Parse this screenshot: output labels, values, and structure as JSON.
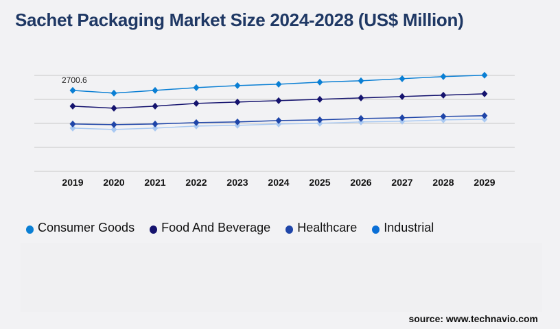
{
  "title": "Sachet Packaging Market Size 2024-2028 (US$ Million)",
  "source": "source: www.technavio.com",
  "chart_data": {
    "type": "line",
    "title": "Sachet Packaging Market Size 2024-2028 (US$ Million)",
    "x": [
      "2019",
      "2020",
      "2021",
      "2022",
      "2023",
      "2024",
      "2025",
      "2026",
      "2027",
      "2028",
      "2029"
    ],
    "ylim": [
      0,
      3200
    ],
    "grid": true,
    "legend": "bottom",
    "annotations": [
      {
        "series": "Consumer Goods",
        "x": "2019",
        "text": "2700.6"
      }
    ],
    "series": [
      {
        "name": "Consumer Goods",
        "color": "#0a7fd4",
        "values": [
          2700.6,
          2609,
          2701,
          2792,
          2861,
          2907,
          2975,
          3021,
          3090,
          3159,
          3205
        ]
      },
      {
        "name": "Food And Beverage",
        "color": "#15136e",
        "values": [
          2175,
          2106,
          2175,
          2266,
          2312,
          2358,
          2403,
          2449,
          2495,
          2541,
          2587
        ]
      },
      {
        "name": "Healthcare",
        "color": "#1f45a8",
        "values": [
          1580,
          1557,
          1580,
          1625,
          1648,
          1694,
          1717,
          1763,
          1786,
          1831,
          1854
        ]
      },
      {
        "name": "Industrial",
        "color": "#0a6fd6",
        "values": [
          1488,
          1442,
          1488,
          1557,
          1580,
          1625,
          1648,
          1694,
          1717,
          1763,
          1785
        ]
      }
    ]
  }
}
